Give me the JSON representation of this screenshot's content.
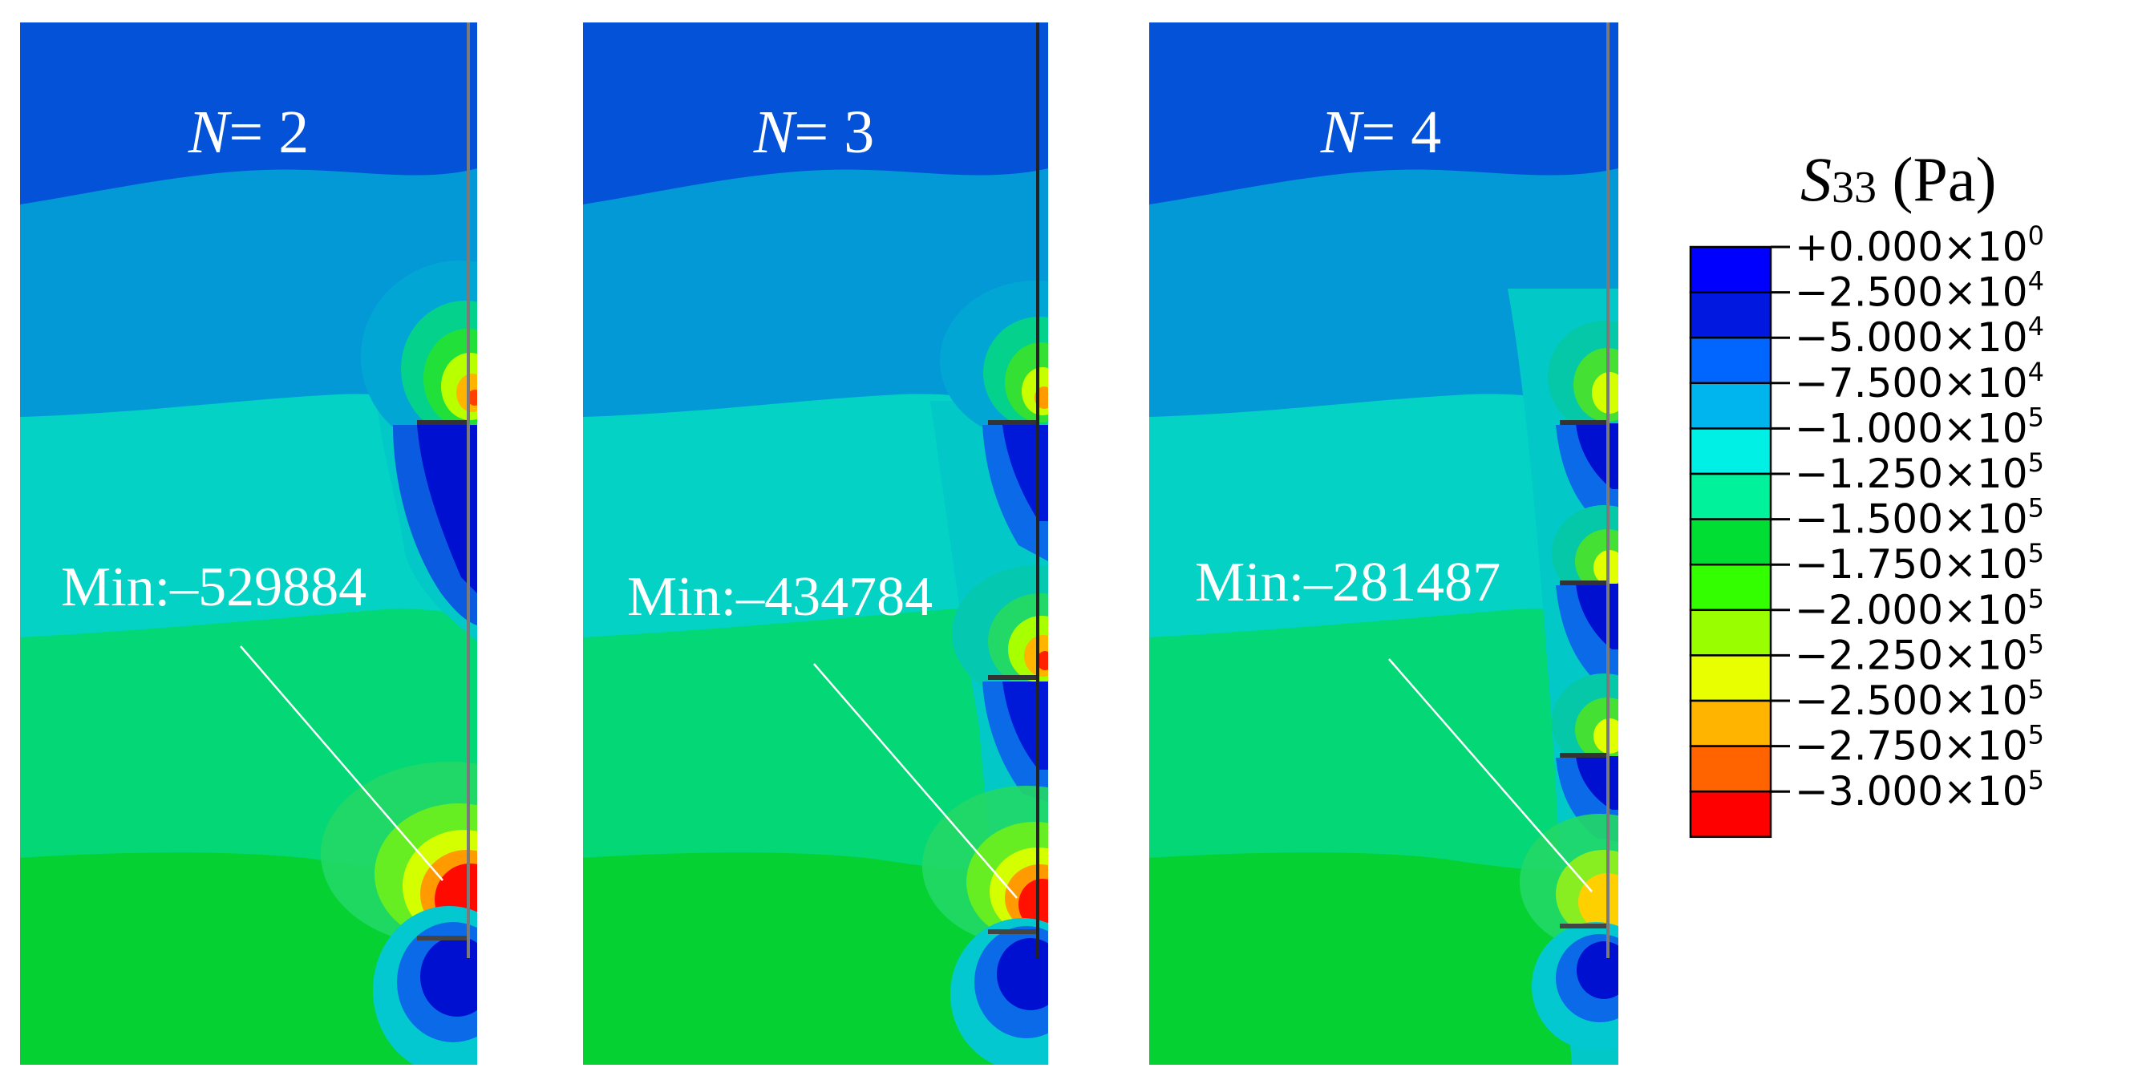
{
  "panels": [
    {
      "label_var": "N",
      "label_eq": "= 2",
      "min_label": "Min:–529884",
      "notches": 2
    },
    {
      "label_var": "N",
      "label_eq": "= 3",
      "min_label": "Min:–434784",
      "notches": 3
    },
    {
      "label_var": "N",
      "label_eq": "= 4",
      "min_label": "Min:–281487",
      "notches": 4
    }
  ],
  "legend": {
    "title_var": "S",
    "title_sub": "33",
    "title_unit": " (Pa)",
    "entries": [
      {
        "mantissa": "+0.000",
        "exp": "0"
      },
      {
        "mantissa": "−2.500",
        "exp": "4"
      },
      {
        "mantissa": "−5.000",
        "exp": "4"
      },
      {
        "mantissa": "−7.500",
        "exp": "4"
      },
      {
        "mantissa": "−1.000",
        "exp": "5"
      },
      {
        "mantissa": "−1.250",
        "exp": "5"
      },
      {
        "mantissa": "−1.500",
        "exp": "5"
      },
      {
        "mantissa": "−1.750",
        "exp": "5"
      },
      {
        "mantissa": "−2.000",
        "exp": "5"
      },
      {
        "mantissa": "−2.250",
        "exp": "5"
      },
      {
        "mantissa": "−2.500",
        "exp": "5"
      },
      {
        "mantissa": "−2.750",
        "exp": "5"
      },
      {
        "mantissa": "−3.000",
        "exp": "5"
      }
    ],
    "colors": [
      "#0000ff",
      "#0018e0",
      "#0066ff",
      "#00b4ee",
      "#00f0e6",
      "#00f29a",
      "#00dd33",
      "#33ff00",
      "#99ff00",
      "#e8ff00",
      "#ffb400",
      "#ff6400",
      "#ff0000"
    ]
  }
}
